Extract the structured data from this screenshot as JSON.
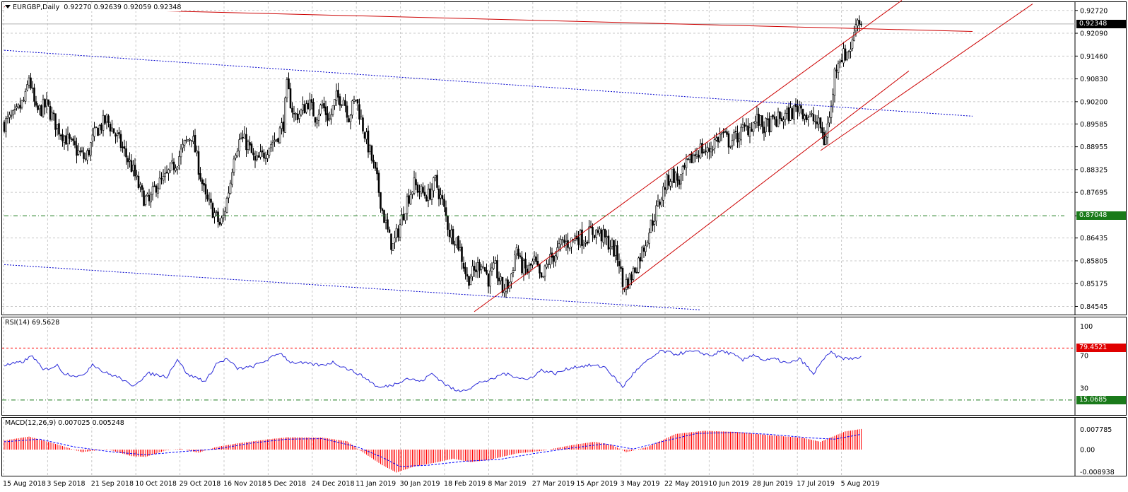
{
  "chart": {
    "header": {
      "symbol": "EURGBP,Daily",
      "ohlc": "0.92270 0.92639 0.92059 0.92348"
    },
    "price_axis": [
      "0.92720",
      "0.92090",
      "0.91460",
      "0.90830",
      "0.90200",
      "0.89585",
      "0.88955",
      "0.88325",
      "0.87695",
      "0.87048",
      "0.86435",
      "0.85805",
      "0.85175",
      "0.84545"
    ],
    "price_badges": {
      "current": {
        "text": "0.92348",
        "color": "#000000"
      },
      "hline": {
        "text": "0.87048",
        "color": "#1a7a1a"
      }
    },
    "time_axis": [
      "15 Aug 2018",
      "3 Sep 2018",
      "21 Sep 2018",
      "10 Oct 2018",
      "29 Oct 2018",
      "16 Nov 2018",
      "5 Dec 2018",
      "24 Dec 2018",
      "11 Jan 2019",
      "30 Jan 2019",
      "18 Feb 2019",
      "8 Mar 2019",
      "27 Mar 2019",
      "15 Apr 2019",
      "3 May 2019",
      "22 May 2019",
      "10 Jun 2019",
      "28 Jun 2019",
      "17 Jul 2019",
      "5 Aug 2019"
    ],
    "colors": {
      "candle": "#000000",
      "channel": "#cc0000",
      "blue_lines": "#0000cc",
      "green_line": "#1a7a1a",
      "rsi_line": "#2b2bd9",
      "macd_hist": "#ff0000",
      "signal": "#0000ff"
    }
  },
  "rsi": {
    "label": "RSI(14) 69.5628",
    "axis": [
      "100",
      "70",
      "30",
      "0"
    ],
    "badges": {
      "upper": "79.4521",
      "lower": "15.0685"
    }
  },
  "macd": {
    "label": "MACD(12,26,9) 0.007025 0.005248",
    "axis": [
      "0.007785",
      "0.00",
      "-0.008938"
    ]
  },
  "chart_data": {
    "type": "candlestick",
    "instrument": "EURGBP",
    "timeframe": "Daily",
    "ylim": [
      0.8432,
      0.9295
    ],
    "anchors": [
      [
        0,
        0.896
      ],
      [
        6,
        0.898
      ],
      [
        12,
        0.903
      ],
      [
        14,
        0.909
      ],
      [
        18,
        0.899
      ],
      [
        24,
        0.901
      ],
      [
        30,
        0.895
      ],
      [
        38,
        0.89
      ],
      [
        46,
        0.886
      ],
      [
        52,
        0.894
      ],
      [
        58,
        0.897
      ],
      [
        64,
        0.892
      ],
      [
        68,
        0.888
      ],
      [
        72,
        0.884
      ],
      [
        78,
        0.876
      ],
      [
        82,
        0.874
      ],
      [
        86,
        0.879
      ],
      [
        90,
        0.88
      ],
      [
        94,
        0.883
      ],
      [
        98,
        0.886
      ],
      [
        102,
        0.89
      ],
      [
        106,
        0.893
      ],
      [
        110,
        0.884
      ],
      [
        114,
        0.875
      ],
      [
        118,
        0.872
      ],
      [
        122,
        0.868
      ],
      [
        124,
        0.87
      ],
      [
        128,
        0.88
      ],
      [
        130,
        0.888
      ],
      [
        134,
        0.892
      ],
      [
        138,
        0.89
      ],
      [
        142,
        0.885
      ],
      [
        146,
        0.887
      ],
      [
        150,
        0.89
      ],
      [
        154,
        0.892
      ],
      [
        158,
        0.896
      ],
      [
        160,
        0.906
      ],
      [
        164,
        0.898
      ],
      [
        168,
        0.899
      ],
      [
        172,
        0.902
      ],
      [
        176,
        0.898
      ],
      [
        180,
        0.901
      ],
      [
        184,
        0.897
      ],
      [
        188,
        0.903
      ],
      [
        192,
        0.903
      ],
      [
        195,
        0.898
      ],
      [
        199,
        0.903
      ],
      [
        203,
        0.895
      ],
      [
        207,
        0.888
      ],
      [
        211,
        0.88
      ],
      [
        214,
        0.872
      ],
      [
        218,
        0.864
      ],
      [
        220,
        0.862
      ],
      [
        224,
        0.868
      ],
      [
        228,
        0.875
      ],
      [
        232,
        0.879
      ],
      [
        236,
        0.877
      ],
      [
        240,
        0.876
      ],
      [
        244,
        0.88
      ],
      [
        248,
        0.874
      ],
      [
        252,
        0.866
      ],
      [
        256,
        0.864
      ],
      [
        258,
        0.861
      ],
      [
        262,
        0.853
      ],
      [
        266,
        0.855
      ],
      [
        270,
        0.858
      ],
      [
        274,
        0.853
      ],
      [
        278,
        0.856
      ],
      [
        282,
        0.85
      ],
      [
        286,
        0.852
      ],
      [
        290,
        0.862
      ],
      [
        292,
        0.857
      ],
      [
        296,
        0.855
      ],
      [
        300,
        0.858
      ],
      [
        304,
        0.852
      ],
      [
        308,
        0.858
      ],
      [
        312,
        0.86
      ],
      [
        316,
        0.863
      ],
      [
        320,
        0.863
      ],
      [
        324,
        0.865
      ],
      [
        328,
        0.864
      ],
      [
        332,
        0.866
      ],
      [
        336,
        0.866
      ],
      [
        340,
        0.864
      ],
      [
        344,
        0.862
      ],
      [
        348,
        0.858
      ],
      [
        350,
        0.851
      ],
      [
        354,
        0.853
      ],
      [
        358,
        0.857
      ],
      [
        362,
        0.862
      ],
      [
        366,
        0.868
      ],
      [
        370,
        0.873
      ],
      [
        374,
        0.879
      ],
      [
        378,
        0.882
      ],
      [
        382,
        0.88
      ],
      [
        386,
        0.884
      ],
      [
        390,
        0.887
      ],
      [
        394,
        0.889
      ],
      [
        398,
        0.888
      ],
      [
        402,
        0.891
      ],
      [
        406,
        0.893
      ],
      [
        410,
        0.891
      ],
      [
        414,
        0.892
      ],
      [
        418,
        0.894
      ],
      [
        422,
        0.895
      ],
      [
        426,
        0.897
      ],
      [
        430,
        0.895
      ],
      [
        434,
        0.896
      ],
      [
        438,
        0.897
      ],
      [
        442,
        0.898
      ],
      [
        446,
        0.899
      ],
      [
        450,
        0.901
      ],
      [
        454,
        0.898
      ],
      [
        458,
        0.897
      ],
      [
        462,
        0.895
      ],
      [
        464,
        0.891
      ],
      [
        468,
        0.9
      ],
      [
        470,
        0.91
      ],
      [
        472,
        0.914
      ],
      [
        476,
        0.915
      ],
      [
        480,
        0.918
      ],
      [
        482,
        0.925
      ],
      [
        486,
        0.9235
      ]
    ],
    "trendlines": [
      {
        "name": "upper red resistance",
        "points": [
          [
            0,
            0.9282
          ],
          [
            548,
            0.9214
          ]
        ]
      },
      {
        "name": "blue channel top",
        "points": [
          [
            0,
            0.9162
          ],
          [
            548,
            0.898
          ]
        ]
      },
      {
        "name": "blue channel bottom",
        "points": [
          [
            0,
            0.857
          ],
          [
            394,
            0.8445
          ]
        ]
      },
      {
        "name": "red channel A",
        "points": [
          [
            266,
            0.844
          ],
          [
            508,
            0.93
          ]
        ]
      },
      {
        "name": "red channel B",
        "points": [
          [
            350,
            0.85
          ],
          [
            512,
            0.9105
          ]
        ]
      },
      {
        "name": "red channel C",
        "points": [
          [
            462,
            0.8885
          ],
          [
            582,
            0.929
          ]
        ]
      },
      {
        "name": "green horizontal",
        "points": [
          [
            0,
            0.87048
          ],
          [
            600,
            0.87048
          ]
        ]
      }
    ],
    "rsi_anchors": [
      [
        0,
        58
      ],
      [
        10,
        62
      ],
      [
        16,
        70
      ],
      [
        22,
        52
      ],
      [
        30,
        58
      ],
      [
        34,
        48
      ],
      [
        44,
        44
      ],
      [
        50,
        60
      ],
      [
        56,
        50
      ],
      [
        66,
        42
      ],
      [
        72,
        32
      ],
      [
        82,
        48
      ],
      [
        92,
        44
      ],
      [
        98,
        66
      ],
      [
        104,
        46
      ],
      [
        110,
        42
      ],
      [
        114,
        38
      ],
      [
        120,
        60
      ],
      [
        126,
        66
      ],
      [
        132,
        54
      ],
      [
        140,
        56
      ],
      [
        150,
        66
      ],
      [
        156,
        74
      ],
      [
        162,
        62
      ],
      [
        172,
        60
      ],
      [
        180,
        58
      ],
      [
        186,
        62
      ],
      [
        194,
        54
      ],
      [
        200,
        48
      ],
      [
        206,
        40
      ],
      [
        212,
        30
      ],
      [
        220,
        34
      ],
      [
        228,
        42
      ],
      [
        236,
        38
      ],
      [
        242,
        48
      ],
      [
        250,
        34
      ],
      [
        256,
        26
      ],
      [
        264,
        30
      ],
      [
        270,
        38
      ],
      [
        276,
        40
      ],
      [
        282,
        48
      ],
      [
        290,
        44
      ],
      [
        296,
        40
      ],
      [
        304,
        52
      ],
      [
        312,
        48
      ],
      [
        322,
        56
      ],
      [
        332,
        58
      ],
      [
        340,
        56
      ],
      [
        344,
        46
      ],
      [
        350,
        31
      ],
      [
        356,
        48
      ],
      [
        362,
        60
      ],
      [
        368,
        70
      ],
      [
        372,
        76
      ],
      [
        380,
        72
      ],
      [
        388,
        75
      ],
      [
        394,
        74
      ],
      [
        400,
        70
      ],
      [
        406,
        76
      ],
      [
        412,
        72
      ],
      [
        418,
        64
      ],
      [
        424,
        72
      ],
      [
        430,
        64
      ],
      [
        436,
        66
      ],
      [
        444,
        60
      ],
      [
        450,
        66
      ],
      [
        454,
        58
      ],
      [
        458,
        46
      ],
      [
        462,
        62
      ],
      [
        468,
        74
      ],
      [
        472,
        68
      ],
      [
        478,
        66
      ],
      [
        484,
        68
      ]
    ],
    "macd_anchors": [
      [
        0,
        0.0035
      ],
      [
        14,
        0.005
      ],
      [
        30,
        0.002
      ],
      [
        44,
        -0.001
      ],
      [
        58,
        0.0002
      ],
      [
        72,
        -0.0025
      ],
      [
        80,
        -0.0028
      ],
      [
        92,
        -0.0002
      ],
      [
        100,
        0.0003
      ],
      [
        110,
        -0.0012
      ],
      [
        120,
        0.001
      ],
      [
        132,
        0.0024
      ],
      [
        150,
        0.004
      ],
      [
        160,
        0.0047
      ],
      [
        180,
        0.0046
      ],
      [
        194,
        0.0032
      ],
      [
        204,
        -0.0015
      ],
      [
        214,
        -0.006
      ],
      [
        222,
        -0.0088
      ],
      [
        232,
        -0.0065
      ],
      [
        244,
        -0.005
      ],
      [
        254,
        -0.0035
      ],
      [
        264,
        -0.0048
      ],
      [
        274,
        -0.004
      ],
      [
        290,
        -0.0015
      ],
      [
        304,
        -0.0005
      ],
      [
        322,
        0.0018
      ],
      [
        334,
        0.003
      ],
      [
        344,
        0.0018
      ],
      [
        352,
        -0.001
      ],
      [
        364,
        0.001
      ],
      [
        380,
        0.006
      ],
      [
        396,
        0.0072
      ],
      [
        414,
        0.0068
      ],
      [
        432,
        0.0056
      ],
      [
        452,
        0.0045
      ],
      [
        462,
        0.003
      ],
      [
        476,
        0.007
      ],
      [
        486,
        0.008
      ]
    ],
    "signal_anchors": [
      [
        0,
        0.003
      ],
      [
        20,
        0.004
      ],
      [
        40,
        0.001
      ],
      [
        60,
        -0.0008
      ],
      [
        80,
        -0.002
      ],
      [
        100,
        -0.0008
      ],
      [
        120,
        0.0002
      ],
      [
        140,
        0.0025
      ],
      [
        160,
        0.004
      ],
      [
        180,
        0.0042
      ],
      [
        200,
        0.001
      ],
      [
        214,
        -0.003
      ],
      [
        224,
        -0.0065
      ],
      [
        240,
        -0.006
      ],
      [
        260,
        -0.0045
      ],
      [
        280,
        -0.0038
      ],
      [
        300,
        -0.0015
      ],
      [
        320,
        0.0005
      ],
      [
        340,
        0.0022
      ],
      [
        356,
        0.0002
      ],
      [
        372,
        0.003
      ],
      [
        392,
        0.0062
      ],
      [
        414,
        0.0066
      ],
      [
        434,
        0.0058
      ],
      [
        456,
        0.0045
      ],
      [
        470,
        0.004
      ],
      [
        486,
        0.006
      ]
    ]
  }
}
